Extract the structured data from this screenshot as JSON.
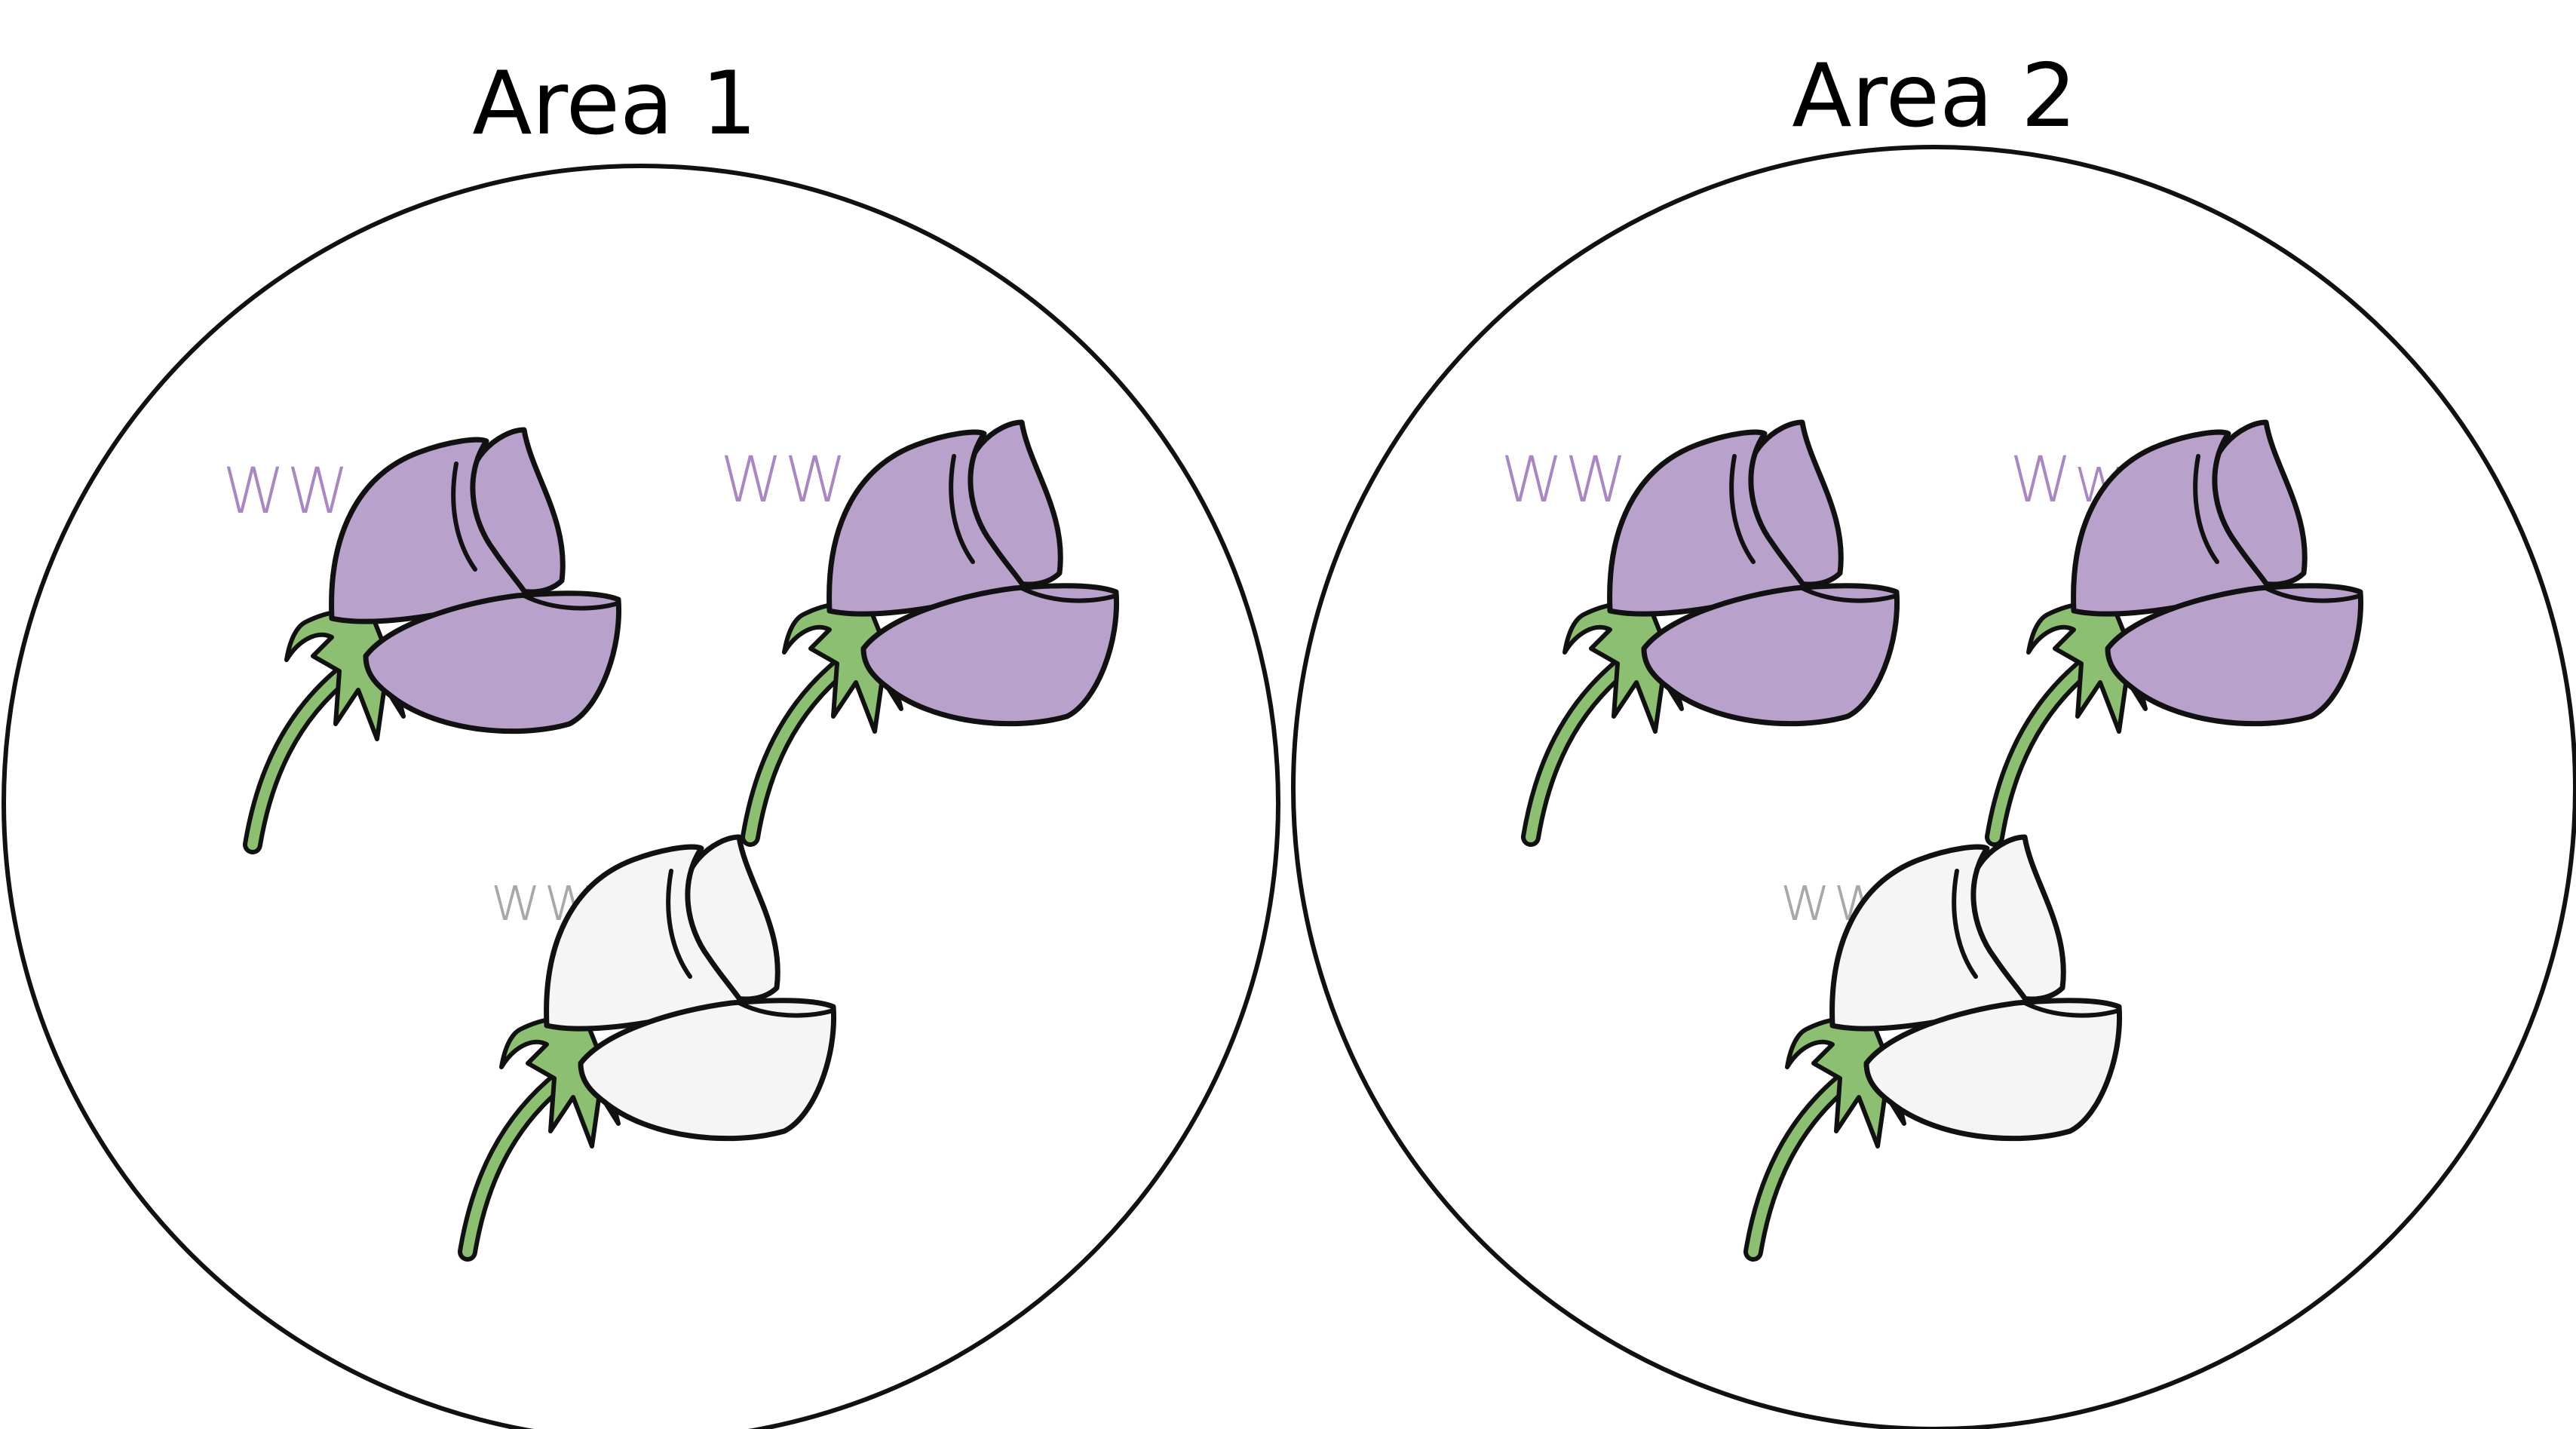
{
  "colors": {
    "purple_petal": "#b8a1cb",
    "white_petal": "#f5f5f5",
    "purple_label": "#a988c2",
    "gray_label": "#a8a8a8",
    "stem": "#8cbf72",
    "outline": "#111111"
  },
  "areas": [
    {
      "title": "Area 1",
      "flowers": [
        {
          "genotype": "WW",
          "color": "purple"
        },
        {
          "genotype": "WW",
          "color": "purple"
        },
        {
          "genotype": "ww",
          "color": "white"
        }
      ]
    },
    {
      "title": "Area 2",
      "flowers": [
        {
          "genotype": "WW",
          "color": "purple"
        },
        {
          "genotype": "Ww",
          "color": "purple"
        },
        {
          "genotype": "ww",
          "color": "white"
        }
      ]
    }
  ]
}
